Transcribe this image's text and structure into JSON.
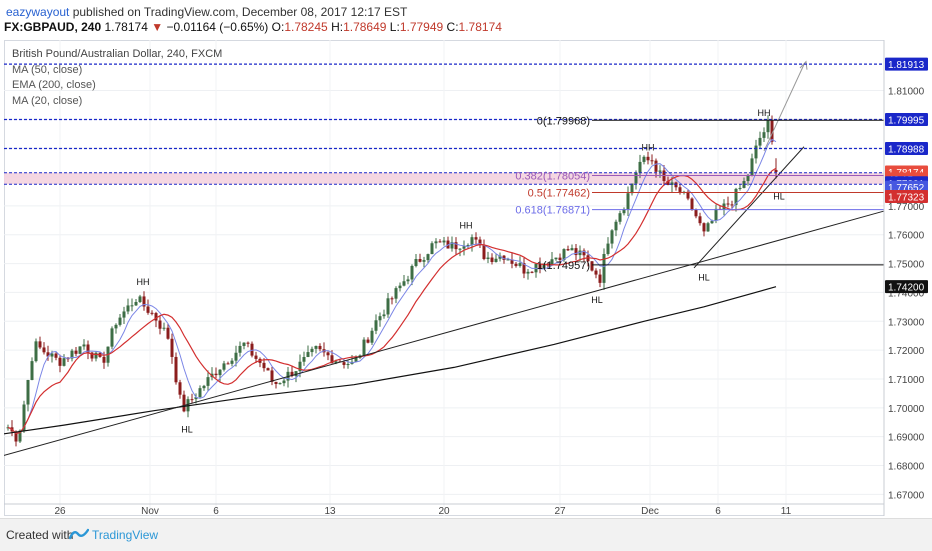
{
  "header": {
    "author": "eazywayout",
    "published": " published on TradingView.com, December 08, 2017 12:17 EST",
    "symbol": "FX:GBPAUD, 240",
    "last": "1.78174",
    "change": "−0.01164 (−0.65%)",
    "o_label": "O:",
    "o": "1.78245",
    "h_label": "H:",
    "h": "1.78649",
    "l_label": "L:",
    "l": "1.77949",
    "c_label": "C:",
    "c": "1.78174"
  },
  "legend": {
    "title": "British Pound/Australian Dollar, 240, FXCM",
    "ma50": "MA (50, close)",
    "ema200": "EMA (200, close)",
    "ma20": "MA (20, close)"
  },
  "footer": {
    "created": "Created with",
    "brand": "TradingView"
  },
  "colors": {
    "up": "#3d6e45",
    "down": "#8b1d1d",
    "ma50": "#d32f2f",
    "ema200": "#111111",
    "ma20": "#7b86e6",
    "blue_level": "#1a27c9",
    "fib": "#7070ff",
    "zone": "#f3d0dd"
  },
  "chart_data": {
    "type": "candlestick",
    "title": "British Pound/Australian Dollar, 240, FXCM",
    "ylim": [
      1.6625,
      1.8275
    ],
    "yticks": [
      "1.67000",
      "1.68000",
      "1.69000",
      "1.70000",
      "1.71000",
      "1.72000",
      "1.73000",
      "1.74000",
      "1.75000",
      "1.76000",
      "1.77000",
      "1.78000",
      "1.79000",
      "1.80000",
      "1.81000"
    ],
    "xticks": [
      "26",
      "Nov",
      "6",
      "13",
      "20",
      "27",
      "Dec",
      "6",
      "11"
    ],
    "price_labels": [
      {
        "text": "1.81913",
        "value": 1.81913,
        "color": "#1a27c9"
      },
      {
        "text": "1.79995",
        "value": 1.79995,
        "color": "#1a27c9"
      },
      {
        "text": "1.78988",
        "value": 1.78988,
        "color": "#1a27c9"
      },
      {
        "text": "1.78174",
        "value": 1.78174,
        "color": "#e84c3d"
      },
      {
        "text": "42:15",
        "value": 1.77935,
        "color": "#e84c3d"
      },
      {
        "text": "1.77801",
        "value": 1.77801,
        "color": "#1a27c9"
      },
      {
        "text": "1.77652",
        "value": 1.77652,
        "color": "#4658e0"
      },
      {
        "text": "1.77323",
        "value": 1.77323,
        "color": "#d32f2f"
      },
      {
        "text": "1.74200",
        "value": 1.742,
        "color": "#111111"
      }
    ],
    "fib_levels": [
      {
        "label": "0(1.79968)",
        "value": 1.79968,
        "color": "#111111"
      },
      {
        "label": "0.382(1.78054)",
        "value": 1.78054,
        "color": "#9b59b6"
      },
      {
        "label": "0.5(1.77462)",
        "value": 1.77462,
        "color": "#c0392b"
      },
      {
        "label": "0.618(1.76871)",
        "value": 1.76871,
        "color": "#6c6ce8"
      },
      {
        "label": "1(1.74957)",
        "value": 1.74957,
        "color": "#111111"
      }
    ],
    "annotations": [
      "HH",
      "HH",
      "HH",
      "HH",
      "HL",
      "HL",
      "HL",
      "HL"
    ],
    "ohlc": {
      "open": 1.78245,
      "high": 1.78649,
      "low": 1.77949,
      "close": 1.78174
    }
  }
}
